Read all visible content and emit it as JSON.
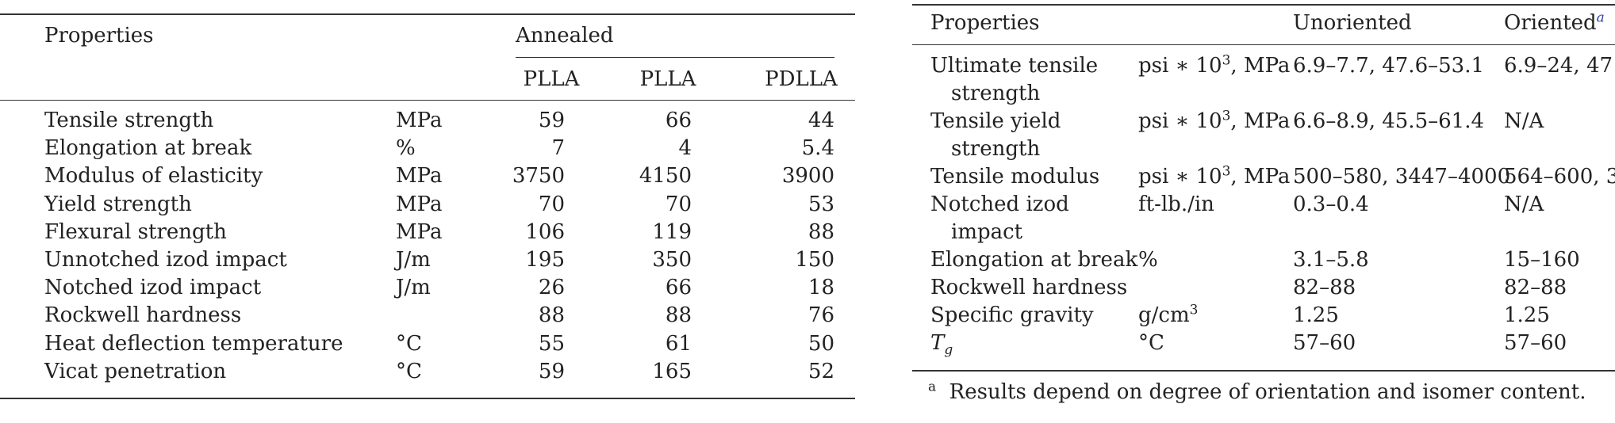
{
  "left_table": {
    "header": {
      "properties": "Properties",
      "annealed": "Annealed",
      "columns": [
        "PLLA",
        "PLLA",
        "PDLLA"
      ]
    },
    "rows": [
      {
        "property": "Tensile strength",
        "unit": "MPa",
        "values": [
          "59",
          "66",
          "44"
        ]
      },
      {
        "property": "Elongation at break",
        "unit": "%",
        "values": [
          "7",
          "4",
          "5.4"
        ]
      },
      {
        "property": "Modulus of elasticity",
        "unit": "MPa",
        "values": [
          "3750",
          "4150",
          "3900"
        ]
      },
      {
        "property": "Yield strength",
        "unit": "MPa",
        "values": [
          "70",
          "70",
          "53"
        ]
      },
      {
        "property": "Flexural strength",
        "unit": "MPa",
        "values": [
          "106",
          "119",
          "88"
        ]
      },
      {
        "property": "Unnotched izod impact",
        "unit": "J/m",
        "values": [
          "195",
          "350",
          "150"
        ]
      },
      {
        "property": "Notched izod impact",
        "unit": "J/m",
        "values": [
          "26",
          "66",
          "18"
        ]
      },
      {
        "property": "Rockwell hardness",
        "unit": "",
        "values": [
          "88",
          "88",
          "76"
        ]
      },
      {
        "property": "Heat deflection temperature",
        "unit": "°C",
        "values": [
          "55",
          "61",
          "50"
        ]
      },
      {
        "property": "Vicat penetration",
        "unit": "°C",
        "values": [
          "59",
          "165",
          "52"
        ]
      }
    ]
  },
  "right_table": {
    "header": {
      "properties": "Properties",
      "unoriented": "Unoriented",
      "oriented": "Oriented",
      "oriented_note": "a"
    },
    "rows": [
      {
        "property_1": "Ultimate tensile",
        "property_2": "strength",
        "unit_pre": "psi ∗ 10",
        "unit_sup": "3",
        "unit_post": ", MPa",
        "unoriented": "6.9–7.7, 47.6–53.1",
        "oriented": "6.9–24, 47"
      },
      {
        "property_1": "Tensile yield",
        "property_2": "strength",
        "unit_pre": "psi ∗ 10",
        "unit_sup": "3",
        "unit_post": ", MPa",
        "unoriented": "6.6–8.9, 45.5–61.4",
        "oriented": "N/A"
      },
      {
        "property_1": "Tensile modulus",
        "property_2": "",
        "unit_pre": "psi ∗ 10",
        "unit_sup": "3",
        "unit_post": ", MPa",
        "unoriented": "500–580, 3447–4000",
        "oriented": "564–600, 3"
      },
      {
        "property_1": "Notched izod",
        "property_2": "impact",
        "unit_pre": "ft-lb./in",
        "unit_sup": "",
        "unit_post": "",
        "unoriented": "0.3–0.4",
        "oriented": "N/A"
      },
      {
        "property_1": "Elongation at break",
        "property_2": "",
        "unit_pre": "%",
        "unit_sup": "",
        "unit_post": "",
        "unoriented": "3.1–5.8",
        "oriented": "15–160"
      },
      {
        "property_1": "Rockwell hardness",
        "property_2": "",
        "unit_pre": "",
        "unit_sup": "",
        "unit_post": "",
        "unoriented": "82–88",
        "oriented": "82–88"
      },
      {
        "property_1": "Specific gravity",
        "property_2": "",
        "unit_pre": "g/cm",
        "unit_sup": "3",
        "unit_post": "",
        "unoriented": "1.25",
        "oriented": "1.25"
      },
      {
        "property_1": "T",
        "property_1_sub": "g",
        "property_2": "",
        "unit_pre": "°C",
        "unit_sup": "",
        "unit_post": "",
        "unoriented": "57–60",
        "oriented": "57–60"
      }
    ],
    "footnote_mark": "a",
    "footnote": "Results depend on degree of orientation and isomer content."
  }
}
